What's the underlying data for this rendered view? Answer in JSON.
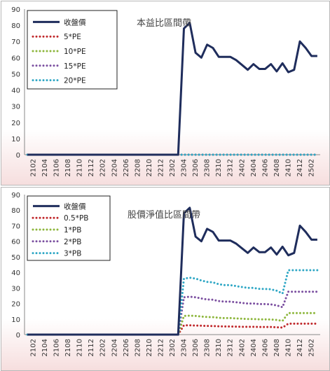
{
  "chart_data": [
    {
      "type": "line",
      "title": "本益比區間帶",
      "xlabel": "",
      "ylabel": "",
      "ylim": [
        0,
        90
      ],
      "yticks": [
        0,
        10,
        20,
        30,
        40,
        50,
        60,
        70,
        80,
        90
      ],
      "grid": false,
      "legend_position": "top-left",
      "x_tick_labels": [
        "2102",
        "2104",
        "2106",
        "2108",
        "2110",
        "2112",
        "2202",
        "2204",
        "2206",
        "2208",
        "2210",
        "2212",
        "2302",
        "2304",
        "2306",
        "2308",
        "2310",
        "2312",
        "2402",
        "2404",
        "2406",
        "2408",
        "2410",
        "2412",
        "2502"
      ],
      "x": [
        "2101",
        "2102",
        "2103",
        "2104",
        "2105",
        "2106",
        "2107",
        "2108",
        "2109",
        "2110",
        "2111",
        "2112",
        "2201",
        "2202",
        "2203",
        "2204",
        "2205",
        "2206",
        "2207",
        "2208",
        "2209",
        "2210",
        "2211",
        "2212",
        "2301",
        "2302",
        "2303",
        "2304",
        "2305",
        "2306",
        "2307",
        "2308",
        "2309",
        "2310",
        "2311",
        "2312",
        "2401",
        "2402",
        "2403",
        "2404",
        "2405",
        "2406",
        "2407",
        "2408",
        "2409",
        "2410",
        "2411",
        "2412",
        "2501",
        "2502",
        "2503"
      ],
      "series": [
        {
          "name": "收盤價",
          "color": "#1f2d5c",
          "style": "solid",
          "values": [
            0,
            0,
            0,
            0,
            0,
            0,
            0,
            0,
            0,
            0,
            0,
            0,
            0,
            0,
            0,
            0,
            0,
            0,
            0,
            0,
            0,
            0,
            0,
            0,
            0,
            0,
            0,
            78,
            81.5,
            63,
            60,
            68,
            66,
            60.5,
            60.5,
            60.5,
            58.5,
            55.5,
            52.5,
            56,
            53,
            53,
            56,
            51.5,
            56.5,
            51,
            52.5,
            70,
            66,
            61,
            61
          ]
        },
        {
          "name": "5*PE",
          "color": "#c0282b",
          "style": "dotted",
          "values": [
            0,
            0,
            0,
            0,
            0,
            0,
            0,
            0,
            0,
            0,
            0,
            0,
            0,
            0,
            0,
            0,
            0,
            0,
            0,
            0,
            0,
            0,
            0,
            0,
            0,
            0,
            0,
            0,
            0,
            0,
            0,
            0,
            0,
            0,
            0,
            0,
            0,
            0,
            0,
            0,
            0,
            0,
            0,
            0,
            0,
            0,
            0,
            0,
            0,
            0,
            0
          ]
        },
        {
          "name": "10*PE",
          "color": "#8db63c",
          "style": "dotted",
          "values": [
            0,
            0,
            0,
            0,
            0,
            0,
            0,
            0,
            0,
            0,
            0,
            0,
            0,
            0,
            0,
            0,
            0,
            0,
            0,
            0,
            0,
            0,
            0,
            0,
            0,
            0,
            0,
            0,
            0,
            0,
            0,
            0,
            0,
            0,
            0,
            0,
            0,
            0,
            0,
            0,
            0,
            0,
            0,
            0,
            0,
            0,
            0,
            0,
            0,
            0,
            0
          ]
        },
        {
          "name": "15*PE",
          "color": "#7b4fa0",
          "style": "dotted",
          "values": [
            0,
            0,
            0,
            0,
            0,
            0,
            0,
            0,
            0,
            0,
            0,
            0,
            0,
            0,
            0,
            0,
            0,
            0,
            0,
            0,
            0,
            0,
            0,
            0,
            0,
            0,
            0,
            0,
            0,
            0,
            0,
            0,
            0,
            0,
            0,
            0,
            0,
            0,
            0,
            0,
            0,
            0,
            0,
            0,
            0,
            0,
            0,
            0,
            0,
            0,
            0
          ]
        },
        {
          "name": "20*PE",
          "color": "#2fa7c5",
          "style": "dotted",
          "values": [
            0,
            0,
            0,
            0,
            0,
            0,
            0,
            0,
            0,
            0,
            0,
            0,
            0,
            0,
            0,
            0,
            0,
            0,
            0,
            0,
            0,
            0,
            0,
            0,
            0,
            0,
            0,
            0,
            0,
            0,
            0,
            0,
            0,
            0,
            0,
            0,
            0,
            0,
            0,
            0,
            0,
            0,
            0,
            0,
            0,
            0,
            0,
            0,
            0,
            0,
            0
          ]
        }
      ]
    },
    {
      "type": "line",
      "title": "股價淨值比區間帶",
      "xlabel": "",
      "ylabel": "",
      "ylim": [
        0,
        90
      ],
      "yticks": [
        0,
        10,
        20,
        30,
        40,
        50,
        60,
        70,
        80,
        90
      ],
      "grid": false,
      "legend_position": "top-left",
      "x_tick_labels": [
        "2102",
        "2104",
        "2106",
        "2108",
        "2110",
        "2112",
        "2202",
        "2204",
        "2206",
        "2208",
        "2210",
        "2212",
        "2302",
        "2304",
        "2306",
        "2308",
        "2310",
        "2312",
        "2402",
        "2404",
        "2406",
        "2408",
        "2410",
        "2412",
        "2502"
      ],
      "x": [
        "2101",
        "2102",
        "2103",
        "2104",
        "2105",
        "2106",
        "2107",
        "2108",
        "2109",
        "2110",
        "2111",
        "2112",
        "2201",
        "2202",
        "2203",
        "2204",
        "2205",
        "2206",
        "2207",
        "2208",
        "2209",
        "2210",
        "2211",
        "2212",
        "2301",
        "2302",
        "2303",
        "2304",
        "2305",
        "2306",
        "2307",
        "2308",
        "2309",
        "2310",
        "2311",
        "2312",
        "2401",
        "2402",
        "2403",
        "2404",
        "2405",
        "2406",
        "2407",
        "2408",
        "2409",
        "2410",
        "2411",
        "2412",
        "2501",
        "2502",
        "2503"
      ],
      "series": [
        {
          "name": "收盤價",
          "color": "#1f2d5c",
          "style": "solid",
          "values": [
            0,
            0,
            0,
            0,
            0,
            0,
            0,
            0,
            0,
            0,
            0,
            0,
            0,
            0,
            0,
            0,
            0,
            0,
            0,
            0,
            0,
            0,
            0,
            0,
            0,
            0,
            0,
            78,
            81.5,
            63,
            60,
            68,
            66,
            60.5,
            60.5,
            60.5,
            58.5,
            55.5,
            52.5,
            56,
            53,
            53,
            56,
            51.5,
            56.5,
            51,
            52.5,
            70,
            66,
            61,
            61
          ]
        },
        {
          "name": "0.5*PB",
          "color": "#c0282b",
          "style": "dotted",
          "values": [
            0,
            0,
            0,
            0,
            0,
            0,
            0,
            0,
            0,
            0,
            0,
            0,
            0,
            0,
            0,
            0,
            0,
            0,
            0,
            0,
            0,
            0,
            0,
            0,
            0,
            0,
            0,
            6,
            6,
            5.8,
            5.7,
            5.6,
            5.5,
            5.3,
            5.2,
            5.2,
            5.1,
            5,
            5,
            5,
            4.9,
            4.9,
            4.9,
            4.7,
            4.5,
            7,
            7,
            7,
            7,
            7,
            7
          ]
        },
        {
          "name": "1*PB",
          "color": "#8db63c",
          "style": "dotted",
          "values": [
            0,
            0,
            0,
            0,
            0,
            0,
            0,
            0,
            0,
            0,
            0,
            0,
            0,
            0,
            0,
            0,
            0,
            0,
            0,
            0,
            0,
            0,
            0,
            0,
            0,
            0,
            0,
            12,
            12.2,
            12,
            11.6,
            11.3,
            11.2,
            10.8,
            10.6,
            10.6,
            10.4,
            10.2,
            10,
            10,
            9.8,
            9.8,
            9.7,
            9.4,
            8.8,
            13.8,
            13.8,
            13.8,
            13.8,
            13.8,
            13.8
          ]
        },
        {
          "name": "2*PB",
          "color": "#7b4fa0",
          "style": "dotted",
          "values": [
            0,
            0,
            0,
            0,
            0,
            0,
            0,
            0,
            0,
            0,
            0,
            0,
            0,
            0,
            0,
            0,
            0,
            0,
            0,
            0,
            0,
            0,
            0,
            0,
            0,
            0,
            0,
            24,
            24.4,
            24,
            23.2,
            22.6,
            22.4,
            21.6,
            21.2,
            21.2,
            20.8,
            20.4,
            20,
            20,
            19.6,
            19.6,
            19.4,
            18.8,
            17.6,
            27.6,
            27.6,
            27.6,
            27.6,
            27.6,
            27.6
          ]
        },
        {
          "name": "3*PB",
          "color": "#2fa7c5",
          "style": "dotted",
          "values": [
            0,
            0,
            0,
            0,
            0,
            0,
            0,
            0,
            0,
            0,
            0,
            0,
            0,
            0,
            0,
            0,
            0,
            0,
            0,
            0,
            0,
            0,
            0,
            0,
            0,
            0,
            0,
            36,
            36.6,
            36,
            34.8,
            33.9,
            33.6,
            32.4,
            31.8,
            31.8,
            31.2,
            30.6,
            30,
            30,
            29.4,
            29.4,
            29.1,
            28.2,
            26.4,
            41.4,
            41.4,
            41.4,
            41.4,
            41.4,
            41.4
          ]
        }
      ]
    }
  ]
}
